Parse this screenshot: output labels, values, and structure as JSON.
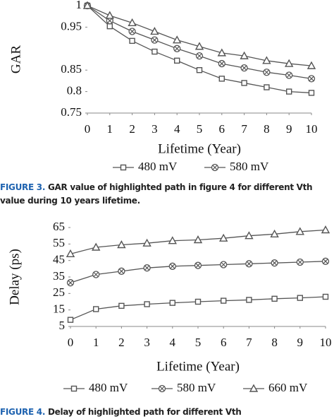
{
  "chart_data": [
    {
      "type": "line",
      "ylabel": "GAR",
      "xlabel": "Lifetime (Year)",
      "x": [
        0,
        1,
        2,
        3,
        4,
        5,
        6,
        7,
        8,
        9,
        10
      ],
      "xlim": [
        0,
        10
      ],
      "xticks": [
        0,
        1,
        2,
        3,
        4,
        5,
        6,
        7,
        8,
        9,
        10
      ],
      "ylim": [
        0.75,
        1
      ],
      "yticks": [
        0.75,
        0.8,
        0.85,
        0.95,
        1
      ],
      "series": [
        {
          "name": "480 mV",
          "color": "#555555",
          "marker": "square",
          "values": [
            1,
            0.952,
            0.918,
            0.893,
            0.872,
            0.85,
            0.83,
            0.82,
            0.81,
            0.8,
            0.797
          ]
        },
        {
          "name": "580 mV",
          "color": "#555555",
          "marker": "circle-x",
          "values": [
            1,
            0.965,
            0.94,
            0.92,
            0.9,
            0.883,
            0.865,
            0.855,
            0.845,
            0.838,
            0.83
          ]
        },
        {
          "color": "#555555",
          "marker": "triangle",
          "values": [
            1,
            0.977,
            0.96,
            0.94,
            0.92,
            0.905,
            0.89,
            0.883,
            0.872,
            0.865,
            0.86
          ]
        }
      ]
    },
    {
      "type": "line",
      "ylabel": "Delay (ps)",
      "xlabel": "Lifetime (Year)",
      "x": [
        0,
        1,
        2,
        3,
        4,
        5,
        6,
        7,
        8,
        9,
        10
      ],
      "xlim": [
        0,
        10
      ],
      "xticks": [
        0,
        1,
        2,
        3,
        4,
        5,
        6,
        7,
        8,
        9,
        10
      ],
      "ylim": [
        5,
        65
      ],
      "yticks": [
        5,
        15,
        25,
        35,
        45,
        55,
        65
      ],
      "series": [
        {
          "name": "480 mV",
          "color": "#555555",
          "marker": "square",
          "values": [
            9,
            15.5,
            17.5,
            18.5,
            19.3,
            20,
            20.6,
            21.1,
            21.8,
            22.3,
            23
          ]
        },
        {
          "name": "580 mV",
          "color": "#555555",
          "marker": "circle-x",
          "values": [
            31.5,
            36.5,
            38.5,
            40.5,
            41.5,
            42,
            42.5,
            43,
            43.5,
            44,
            44.5
          ]
        },
        {
          "name": "660 mV",
          "color": "#555555",
          "marker": "triangle",
          "values": [
            49,
            53,
            54.5,
            55.5,
            57,
            57.5,
            58.5,
            60,
            61,
            62.5,
            63.5
          ]
        }
      ]
    }
  ],
  "captions": [
    {
      "label": "FIGURE 3.",
      "text": "GAR value of highlighted path in figure 4 for different Vth value during 10 years lifetime."
    },
    {
      "label": "FIGURE 4.",
      "text": "Delay of highlighted path for different Vth"
    }
  ]
}
